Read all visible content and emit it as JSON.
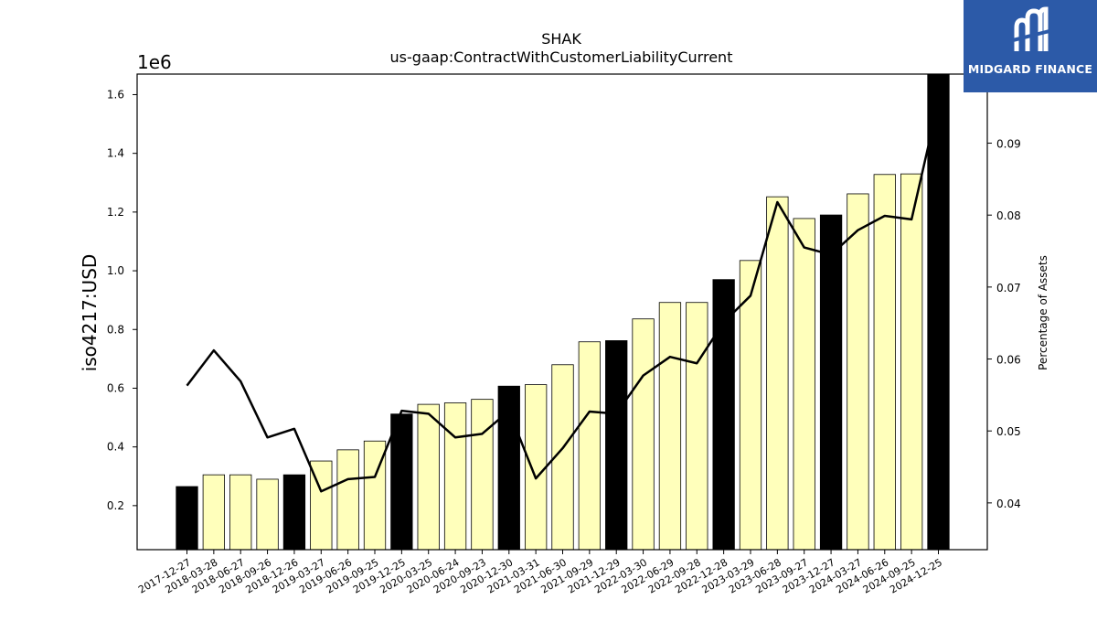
{
  "chart_data": {
    "type": "bar",
    "title": "SHAK",
    "subtitle": "us-gaap:ContractWithCustomerLiabilityCurrent",
    "ylabel": "iso4217:USD",
    "ylabel_right": "Percentage of Assets",
    "y_offset_label": "1e6",
    "ylim": [
      0.05,
      1.67
    ],
    "y2lim": [
      0.0335,
      0.0996
    ],
    "yticks": [
      "0.2",
      "0.4",
      "0.6",
      "0.8",
      "1.0",
      "1.2",
      "1.4",
      "1.6"
    ],
    "y2ticks": [
      "0.04",
      "0.05",
      "0.06",
      "0.07",
      "0.08",
      "0.09"
    ],
    "categories": [
      "2017-12-27",
      "2018-03-28",
      "2018-06-27",
      "2018-09-26",
      "2018-12-26",
      "2019-03-27",
      "2019-06-26",
      "2019-09-25",
      "2019-12-25",
      "2020-03-25",
      "2020-06-24",
      "2020-09-23",
      "2020-12-30",
      "2021-03-31",
      "2021-06-30",
      "2021-09-29",
      "2021-12-29",
      "2022-03-30",
      "2022-06-29",
      "2022-09-28",
      "2022-12-28",
      "2023-03-29",
      "2023-06-28",
      "2023-09-27",
      "2023-12-27",
      "2024-03-27",
      "2024-06-26",
      "2024-09-25",
      "2024-12-25"
    ],
    "series": [
      {
        "kind": "bar",
        "values": [
          0.265,
          0.305,
          0.305,
          0.29,
          0.305,
          0.352,
          0.39,
          0.42,
          0.512,
          0.545,
          0.55,
          0.562,
          0.607,
          0.612,
          0.68,
          0.758,
          0.762,
          0.836,
          0.892,
          0.892,
          0.97,
          1.035,
          1.252,
          1.178,
          1.19,
          1.262,
          1.328,
          1.33,
          1.668
        ],
        "colors": [
          "#000000",
          "#ffffbb",
          "#ffffbb",
          "#ffffbb",
          "#000000",
          "#ffffbb",
          "#ffffbb",
          "#ffffbb",
          "#000000",
          "#ffffbb",
          "#ffffbb",
          "#ffffbb",
          "#000000",
          "#ffffbb",
          "#ffffbb",
          "#ffffbb",
          "#000000",
          "#ffffbb",
          "#ffffbb",
          "#ffffbb",
          "#000000",
          "#ffffbb",
          "#ffffbb",
          "#ffffbb",
          "#000000",
          "#ffffbb",
          "#ffffbb",
          "#ffffbb",
          "#000000"
        ]
      },
      {
        "kind": "line",
        "axis": "right",
        "color": "#000000",
        "values": [
          0.0563,
          0.0612,
          0.0569,
          0.0491,
          0.0503,
          0.0416,
          0.0433,
          0.0436,
          0.0528,
          0.0524,
          0.0491,
          0.0496,
          0.0528,
          0.0434,
          0.0476,
          0.0527,
          0.0524,
          0.0577,
          0.0603,
          0.0594,
          0.0651,
          0.0688,
          0.0818,
          0.0755,
          0.0745,
          0.0779,
          0.0799,
          0.0794,
          0.0957
        ]
      }
    ],
    "grid": false
  },
  "logo": {
    "text": "MIDGARD FINANCE",
    "background": "#2c5aa8"
  }
}
